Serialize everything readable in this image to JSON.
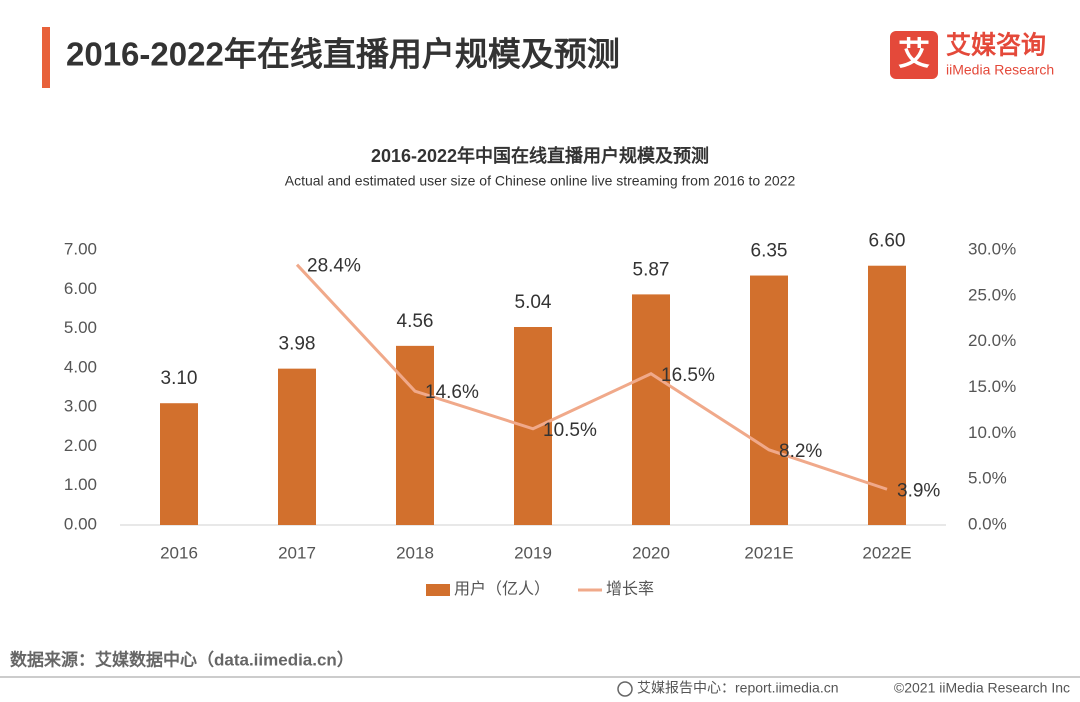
{
  "header": {
    "title": "2016-2022年在线直播用户规模及预测"
  },
  "logo": {
    "icon": "艾",
    "name": "艾媒咨询",
    "english": "iiMedia Research"
  },
  "chart_data": {
    "type": "combo",
    "title": "2016-2022年中国在线直播用户规模及预测",
    "subtitle": "Actual and estimated user size of Chinese online live streaming from 2016 to 2022",
    "categories": [
      "2016",
      "2017",
      "2018",
      "2019",
      "2020",
      "2021E",
      "2022E"
    ],
    "series": [
      {
        "name": "用户（亿人）",
        "type": "bar",
        "color": "#d2702d",
        "values": [
          3.1,
          3.98,
          4.56,
          5.04,
          5.87,
          6.35,
          6.6
        ],
        "value_labels": [
          "3.10",
          "3.98",
          "4.56",
          "5.04",
          "5.87",
          "6.35",
          "6.60"
        ]
      },
      {
        "name": "增长率",
        "type": "line",
        "axis": "y2",
        "color": "#f0a98a",
        "values": [
          null,
          28.4,
          14.6,
          10.5,
          16.5,
          8.2,
          3.9
        ],
        "value_labels": [
          null,
          "28.4%",
          "14.6%",
          "10.5%",
          "16.5%",
          "8.2%",
          "3.9%"
        ]
      }
    ],
    "ylim": [
      0,
      7
    ],
    "yticks": [
      {
        "value": 0,
        "label": "0.00"
      },
      {
        "value": 1,
        "label": "1.00"
      },
      {
        "value": 2,
        "label": "2.00"
      },
      {
        "value": 3,
        "label": "3.00"
      },
      {
        "value": 4,
        "label": "4.00"
      },
      {
        "value": 5,
        "label": "5.00"
      },
      {
        "value": 6,
        "label": "6.00"
      },
      {
        "value": 7,
        "label": "7.00"
      }
    ],
    "y2lim": [
      0,
      30
    ],
    "y2ticks": [
      {
        "value": 0,
        "label": "0.0%"
      },
      {
        "value": 5,
        "label": "5.0%"
      },
      {
        "value": 10,
        "label": "10.0%"
      },
      {
        "value": 15,
        "label": "15.0%"
      },
      {
        "value": 20,
        "label": "20.0%"
      },
      {
        "value": 25,
        "label": "25.0%"
      },
      {
        "value": 30,
        "label": "30.0%"
      }
    ],
    "grid": false
  },
  "source": "数据来源：艾媒数据中心（data.iimedia.cn）",
  "footer": {
    "report": "艾媒报告中心：report.iimedia.cn",
    "copyright": "©2021  iiMedia Research  Inc"
  }
}
